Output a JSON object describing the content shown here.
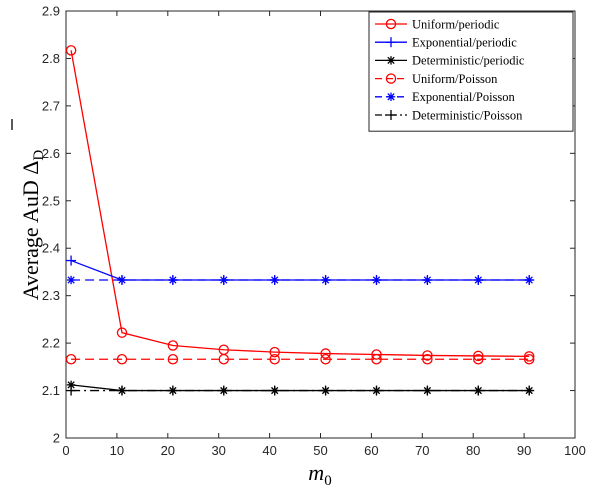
{
  "chart_data": {
    "type": "line",
    "xlabel": "m",
    "xlabel_sub": "0",
    "ylabel": "Average AuD Δ",
    "ylabel_sub": "D",
    "xlim": [
      0,
      100
    ],
    "ylim": [
      2,
      2.9
    ],
    "xticks": [
      0,
      10,
      20,
      30,
      40,
      50,
      60,
      70,
      80,
      90,
      100
    ],
    "yticks": [
      2,
      2.1,
      2.2,
      2.3,
      2.4,
      2.5,
      2.6,
      2.7,
      2.8,
      2.9
    ],
    "grid": false,
    "legend_position": "top-right",
    "x": [
      1,
      11,
      21,
      31,
      41,
      51,
      61,
      71,
      81,
      91
    ],
    "series": [
      {
        "name": "Uniform/periodic",
        "color": "#ff0000",
        "line": "solid",
        "marker": "circle",
        "values": [
          2.817,
          2.222,
          2.195,
          2.186,
          2.181,
          2.178,
          2.176,
          2.174,
          2.173,
          2.172
        ]
      },
      {
        "name": "Exponential/periodic",
        "color": "#0000ff",
        "line": "solid",
        "marker": "plus",
        "values": [
          2.374,
          2.333,
          2.333,
          2.333,
          2.333,
          2.333,
          2.333,
          2.333,
          2.333,
          2.333
        ]
      },
      {
        "name": "Deterministic/periodic",
        "color": "#000000",
        "line": "solid",
        "marker": "star",
        "values": [
          2.112,
          2.1,
          2.1,
          2.1,
          2.1,
          2.1,
          2.1,
          2.1,
          2.1,
          2.1
        ]
      },
      {
        "name": "Uniform/Poisson",
        "color": "#ff0000",
        "line": "dashed",
        "marker": "circle",
        "values": [
          2.166,
          2.166,
          2.166,
          2.166,
          2.166,
          2.166,
          2.166,
          2.166,
          2.166,
          2.166
        ]
      },
      {
        "name": "Exponential/Poisson",
        "color": "#0000ff",
        "line": "dashed",
        "marker": "star",
        "values": [
          2.333,
          2.333,
          2.333,
          2.333,
          2.333,
          2.333,
          2.333,
          2.333,
          2.333,
          2.333
        ]
      },
      {
        "name": "Deterministic/Poisson",
        "color": "#000000",
        "line": "dashdot",
        "marker": "plus",
        "values": [
          2.1,
          2.1,
          2.1,
          2.1,
          2.1,
          2.1,
          2.1,
          2.1,
          2.1,
          2.1
        ]
      }
    ]
  }
}
